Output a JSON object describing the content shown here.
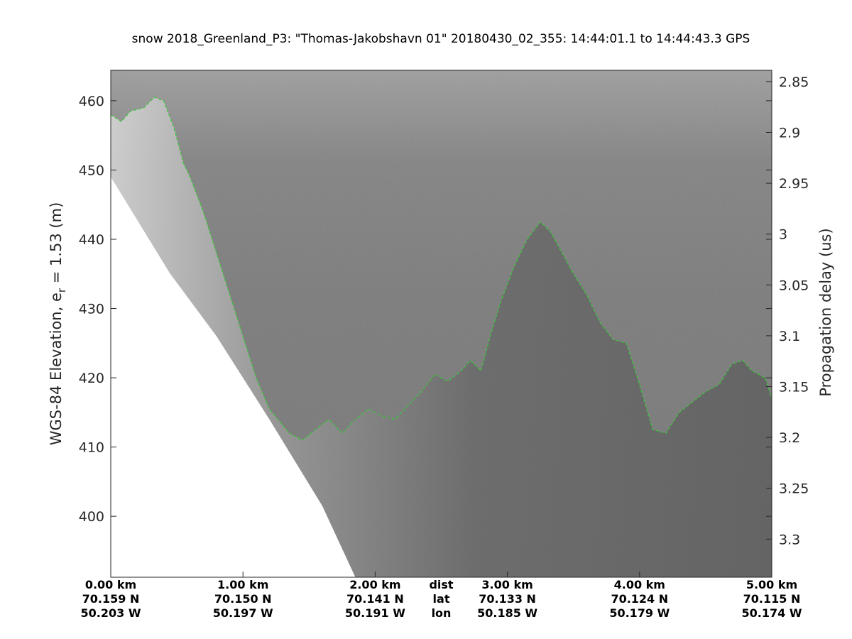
{
  "title": "snow 2018_Greenland_P3: \"Thomas-Jakobshavn 01\"  20180430_02_355: 14:44:01.1 to 14:44:43.3 GPS",
  "chart_data": {
    "type": "radar-echogram",
    "left_axis": {
      "label_main": "WGS-84 Elevation, e",
      "label_sub": "r",
      "label_tail": " = 1.53 (m)",
      "ticks": [
        460,
        450,
        440,
        430,
        420,
        410,
        400
      ],
      "range": [
        391.2,
        464.4
      ]
    },
    "right_axis": {
      "label": "Propagation delay (us)",
      "ticks": [
        2.85,
        2.9,
        2.95,
        3,
        3.05,
        3.1,
        3.15,
        3.2,
        3.25,
        3.3
      ],
      "range": [
        2.8389,
        3.3375
      ]
    },
    "x_axis": {
      "range_km": [
        0,
        5
      ],
      "row_labels": [
        "dist",
        "lat",
        "lon"
      ],
      "ticks": [
        {
          "km": 0,
          "dist": "0.00 km",
          "lat": "70.159 N",
          "lon": "50.203 W"
        },
        {
          "km": 1,
          "dist": "1.00 km",
          "lat": "70.150 N",
          "lon": "50.197 W"
        },
        {
          "km": 2,
          "dist": "2.00 km",
          "lat": "70.141 N",
          "lon": "50.191 W"
        },
        {
          "km": 3,
          "dist": "3.00 km",
          "lat": "70.133 N",
          "lon": "50.185 W"
        },
        {
          "km": 4,
          "dist": "4.00 km",
          "lat": "70.124 N",
          "lon": "50.179 W"
        },
        {
          "km": 5,
          "dist": "5.00 km",
          "lat": "70.115 N",
          "lon": "50.174 W"
        }
      ]
    },
    "surface_trace": {
      "color": "#33cc33",
      "style": "dashed",
      "x_km": [
        0,
        0.08,
        0.15,
        0.25,
        0.33,
        0.4,
        0.48,
        0.55,
        0.6,
        0.7,
        0.8,
        0.9,
        1.0,
        1.1,
        1.2,
        1.35,
        1.45,
        1.55,
        1.65,
        1.75,
        1.85,
        1.95,
        2.05,
        2.15,
        2.25,
        2.35,
        2.45,
        2.55,
        2.65,
        2.72,
        2.8,
        2.87,
        2.95,
        3.05,
        3.15,
        3.25,
        3.33,
        3.4,
        3.5,
        3.6,
        3.7,
        3.8,
        3.9,
        4.0,
        4.1,
        4.2,
        4.3,
        4.4,
        4.5,
        4.6,
        4.7,
        4.78,
        4.85,
        4.95,
        5.0
      ],
      "elevation_m": [
        458,
        457,
        458.5,
        459,
        460.5,
        460,
        456,
        451,
        449,
        444,
        438,
        432,
        426,
        420,
        415.5,
        412,
        411,
        412.5,
        414,
        412,
        414,
        415.5,
        414.5,
        414,
        416,
        418,
        420.5,
        419.5,
        421,
        422.5,
        421,
        426,
        431,
        436,
        440,
        442.5,
        441,
        438.5,
        435,
        432,
        428,
        425.5,
        425,
        419,
        412.5,
        412,
        415,
        416.5,
        418,
        419,
        422,
        422.5,
        421,
        420,
        417
      ]
    },
    "lower_edge": {
      "x_km": [
        0,
        0.45,
        0.8,
        1.2,
        1.6,
        1.85
      ],
      "elevation_m": [
        449,
        435,
        426,
        414,
        401.5,
        391.2
      ]
    }
  }
}
